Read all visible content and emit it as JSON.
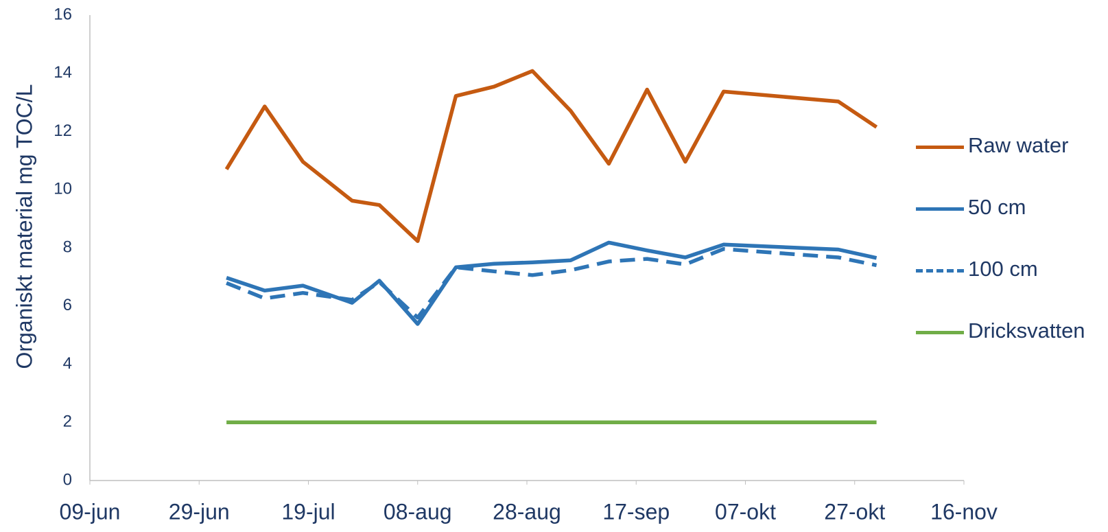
{
  "chart_data": {
    "type": "line",
    "y_label": "Organiskt material mg TOC/L",
    "x": [
      "04-jul",
      "11-jul",
      "18-jul",
      "27-jul",
      "01-aug",
      "08-aug",
      "15-aug",
      "22-aug",
      "29-aug",
      "05-sep",
      "12-sep",
      "19-sep",
      "26-sep",
      "03-okt",
      "24-okt",
      "31-okt"
    ],
    "xlim": [
      "09-jun",
      "16-nov"
    ],
    "xticks": [
      "09-jun",
      "29-jun",
      "19-jul",
      "08-aug",
      "28-aug",
      "17-sep",
      "07-okt",
      "27-okt",
      "16-nov"
    ],
    "ylim": [
      0,
      16
    ],
    "yticks": [
      0,
      2,
      4,
      6,
      8,
      10,
      12,
      14,
      16
    ],
    "grid": false,
    "legend": "right",
    "series": [
      {
        "name": "Raw water",
        "color": "#c55a11",
        "style": "solid",
        "values": [
          10.7,
          12.86,
          10.96,
          9.62,
          9.47,
          8.23,
          13.22,
          13.54,
          14.08,
          12.71,
          10.89,
          13.44,
          10.96,
          13.37,
          13.03,
          12.15
        ]
      },
      {
        "name": "50 cm",
        "color": "#2e75b6",
        "style": "solid",
        "values": [
          6.97,
          6.53,
          6.7,
          6.11,
          6.87,
          5.38,
          7.33,
          7.45,
          7.5,
          7.57,
          8.18,
          7.91,
          7.67,
          8.11,
          7.94,
          7.65
        ]
      },
      {
        "name": "100 cm",
        "color": "#2e75b6",
        "style": "dashed",
        "values": [
          6.79,
          6.26,
          6.45,
          6.21,
          6.82,
          5.6,
          7.33,
          7.19,
          7.06,
          7.23,
          7.53,
          7.62,
          7.43,
          7.96,
          7.67,
          7.4
        ]
      },
      {
        "name": "Dricksvatten",
        "color": "#70ad47",
        "style": "solid",
        "values": [
          2,
          2,
          2,
          2,
          2,
          2,
          2,
          2,
          2,
          2,
          2,
          2,
          2,
          2,
          2,
          2
        ]
      }
    ]
  }
}
